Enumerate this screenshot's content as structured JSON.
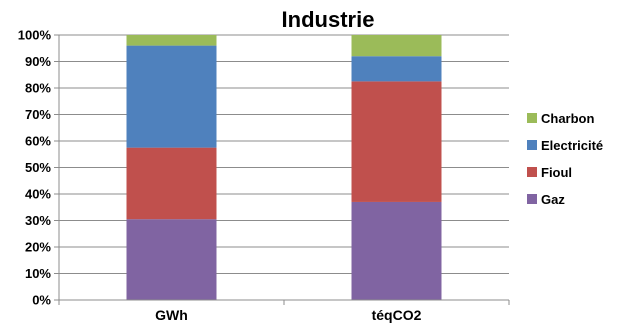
{
  "chart_data": {
    "type": "bar",
    "stacked": true,
    "title": "Industrie",
    "categories": [
      "GWh",
      "téqCO2"
    ],
    "series": [
      {
        "name": "Gaz",
        "color": "#8064A2",
        "values": [
          30.5,
          37
        ]
      },
      {
        "name": "Fioul",
        "color": "#C0504D",
        "values": [
          27.0,
          45.5
        ]
      },
      {
        "name": "Electricité",
        "color": "#4F81BD",
        "values": [
          38.5,
          9.5
        ]
      },
      {
        "name": "Charbon",
        "color": "#9BBB59",
        "values": [
          4.0,
          8.0
        ]
      }
    ],
    "y_ticks": [
      "0%",
      "10%",
      "20%",
      "30%",
      "40%",
      "50%",
      "60%",
      "70%",
      "80%",
      "90%",
      "100%"
    ],
    "ylim": [
      0,
      100
    ],
    "grid": true,
    "legend_position": "right",
    "legend_order": [
      "Charbon",
      "Electricité",
      "Fioul",
      "Gaz"
    ]
  }
}
